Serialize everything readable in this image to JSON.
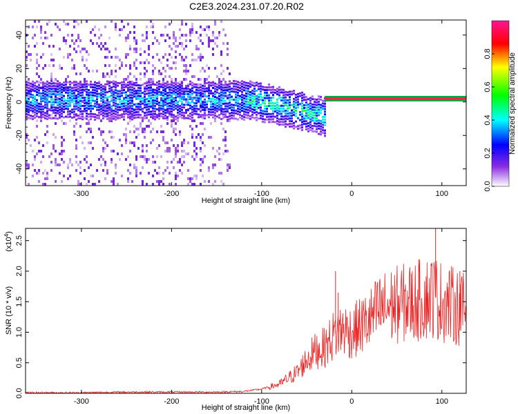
{
  "title": "C2E3.2024.231.07.20.R02",
  "chart_data": [
    {
      "type": "heatmap",
      "xlabel": "Height of straight line (km)",
      "ylabel": "Frequency (Hz)",
      "xlim": [
        -362,
        127
      ],
      "ylim": [
        -50,
        49
      ],
      "xticks": [
        -300,
        -200,
        -100,
        0,
        100
      ],
      "yticks": [
        -40,
        -20,
        0,
        20,
        40
      ],
      "colorbar": {
        "label": "Normalized spectral amplitude",
        "range": [
          0,
          1
        ],
        "ticks": [
          "0.0",
          "0.2",
          "0.4",
          "0.6",
          "0.8"
        ],
        "colors": [
          "#ffffff",
          "#8a2be2",
          "#0000ff",
          "#00ffff",
          "#00ff00",
          "#ffff00",
          "#ff0000",
          "#ff1493"
        ]
      },
      "features": {
        "broadband_noise_x_range": [
          -362,
          -135
        ],
        "band_center_hz": 2,
        "band_end_point": [
          -30,
          -15
        ],
        "tonal_line_x_range": [
          -30,
          127
        ],
        "tonal_line_hz": 2
      }
    },
    {
      "type": "line",
      "xlabel": "Height of straight line (km)",
      "ylabel": "SNR (10 * v/v)",
      "yscale_label": "(x10",
      "yscale_exp": "4",
      "xlim": [
        -362,
        127
      ],
      "ylim": [
        0,
        2.7
      ],
      "xticks": [
        -300,
        -200,
        -100,
        0,
        100
      ],
      "yticks": [
        "0.0",
        "0.5",
        "1.0",
        "1.5",
        "2.0",
        "2.5"
      ],
      "color": "#ee2222",
      "series": [
        {
          "x": [
            -360,
            -300,
            -250,
            -200,
            -150,
            -120,
            -100,
            -80,
            -60,
            -50,
            -40,
            -30,
            -20,
            -10,
            0,
            10,
            20,
            30,
            40,
            50,
            60,
            70,
            80,
            90,
            100,
            110,
            120,
            127
          ],
          "values": [
            0.01,
            0.01,
            0.02,
            0.02,
            0.02,
            0.03,
            0.07,
            0.15,
            0.35,
            0.55,
            0.7,
            0.75,
            0.95,
            1.05,
            1.0,
            1.1,
            1.2,
            1.35,
            1.42,
            1.45,
            1.48,
            1.5,
            1.55,
            1.6,
            1.5,
            1.45,
            1.4,
            1.35
          ]
        }
      ],
      "peaks": [
        [
          -18,
          2.0
        ],
        [
          -15,
          1.65
        ],
        [
          93,
          2.7
        ],
        [
          75,
          2.0
        ],
        [
          120,
          2.0
        ]
      ]
    }
  ]
}
